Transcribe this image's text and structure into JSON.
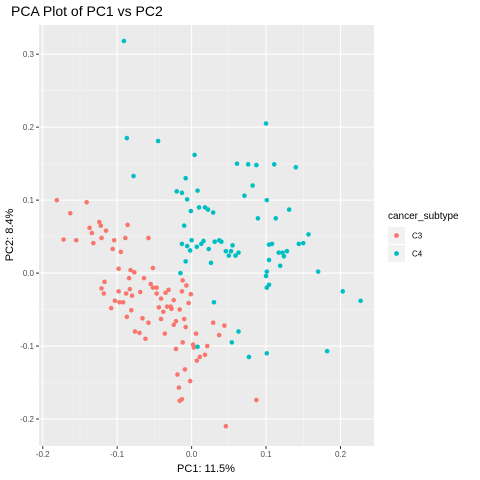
{
  "chart_data": {
    "type": "scatter",
    "title": "PCA Plot of PC1 vs PC2",
    "xlabel": "PC1: 11.5%",
    "ylabel": "PC2: 8.4%",
    "xlim": [
      -0.205,
      0.245
    ],
    "ylim": [
      -0.237,
      0.34
    ],
    "x_ticks": [
      -0.2,
      -0.1,
      0.0,
      0.1,
      0.2
    ],
    "x_tick_labels": [
      "-0.2",
      "-0.1",
      "0.0",
      "0.1",
      "0.2"
    ],
    "y_ticks": [
      -0.2,
      -0.1,
      0.0,
      0.1,
      0.2,
      0.3
    ],
    "y_tick_labels": [
      "-0.2",
      "-0.1",
      "0.0",
      "0.1",
      "0.2",
      "0.3"
    ],
    "grid": true,
    "legend": {
      "title": "cancer_subtype",
      "position": "right"
    },
    "series": [
      {
        "name": "C3",
        "color": "#F8766D",
        "points": [
          [
            -0.181,
            0.1
          ],
          [
            -0.172,
            0.046
          ],
          [
            -0.163,
            0.082
          ],
          [
            -0.155,
            0.045
          ],
          [
            -0.141,
            0.097
          ],
          [
            -0.137,
            0.062
          ],
          [
            -0.134,
            0.055
          ],
          [
            -0.132,
            0.041
          ],
          [
            -0.124,
            0.07
          ],
          [
            -0.122,
            0.065
          ],
          [
            -0.121,
            0.048
          ],
          [
            -0.115,
            0.058
          ],
          [
            -0.106,
            0.033
          ],
          [
            -0.104,
            0.045
          ],
          [
            -0.098,
            0.006
          ],
          [
            -0.095,
            0.029
          ],
          [
            -0.089,
            0.048
          ],
          [
            -0.086,
            0.066
          ],
          [
            -0.084,
            -0.007
          ],
          [
            -0.082,
            0.004
          ],
          [
            -0.077,
            0.001
          ],
          [
            -0.064,
            -0.007
          ],
          [
            -0.058,
            0.048
          ],
          [
            -0.052,
            0.007
          ],
          [
            -0.047,
            -0.02
          ],
          [
            -0.121,
            -0.021
          ],
          [
            -0.118,
            -0.028
          ],
          [
            -0.117,
            -0.012
          ],
          [
            -0.108,
            -0.048
          ],
          [
            -0.103,
            -0.038
          ],
          [
            -0.098,
            -0.025
          ],
          [
            -0.097,
            -0.04
          ],
          [
            -0.092,
            -0.04
          ],
          [
            -0.088,
            -0.028
          ],
          [
            -0.087,
            -0.06
          ],
          [
            -0.083,
            -0.022
          ],
          [
            -0.081,
            -0.051
          ],
          [
            -0.08,
            -0.031
          ],
          [
            -0.069,
            -0.026
          ],
          [
            -0.066,
            -0.062
          ],
          [
            -0.062,
            -0.09
          ],
          [
            -0.058,
            -0.068
          ],
          [
            -0.052,
            -0.02
          ],
          [
            -0.047,
            -0.028
          ],
          [
            -0.044,
            -0.047
          ],
          [
            -0.041,
            -0.063
          ],
          [
            -0.038,
            -0.053
          ],
          [
            -0.036,
            -0.083
          ],
          [
            -0.035,
            -0.027
          ],
          [
            -0.033,
            -0.046
          ],
          [
            -0.031,
            -0.023
          ],
          [
            -0.028,
            -0.046
          ],
          [
            -0.027,
            -0.049
          ],
          [
            -0.024,
            -0.037
          ],
          [
            -0.021,
            -0.066
          ],
          [
            -0.016,
            -0.05
          ],
          [
            -0.013,
            -0.025
          ],
          [
            -0.012,
            -0.01
          ],
          [
            -0.012,
            -0.095
          ],
          [
            -0.01,
            -0.063
          ],
          [
            -0.008,
            -0.074
          ],
          [
            -0.007,
            -0.017
          ],
          [
            -0.004,
            -0.041
          ],
          [
            -0.001,
            -0.029
          ],
          [
            0.002,
            -0.098
          ],
          [
            0.006,
            -0.083
          ],
          [
            -0.024,
            -0.071
          ],
          [
            -0.021,
            -0.104
          ],
          [
            -0.019,
            -0.139
          ],
          [
            -0.017,
            -0.157
          ],
          [
            -0.016,
            -0.175
          ],
          [
            -0.013,
            -0.173
          ],
          [
            -0.009,
            -0.132
          ],
          [
            -0.002,
            -0.148
          ],
          [
            0.003,
            -0.102
          ],
          [
            0.007,
            -0.12
          ],
          [
            0.011,
            -0.115
          ],
          [
            0.018,
            -0.112
          ],
          [
            0.021,
            -0.1
          ],
          [
            0.029,
            -0.068
          ],
          [
            0.037,
            -0.085
          ],
          [
            0.044,
            -0.072
          ],
          [
            0.046,
            -0.21
          ],
          [
            0.087,
            -0.174
          ],
          [
            -0.07,
            -0.082
          ],
          [
            -0.076,
            -0.08
          ],
          [
            -0.055,
            -0.015
          ],
          [
            -0.041,
            -0.035
          ]
        ]
      },
      {
        "name": "C4",
        "color": "#00BFC4",
        "points": [
          [
            -0.091,
            0.318
          ],
          [
            -0.087,
            0.185
          ],
          [
            -0.078,
            0.133
          ],
          [
            -0.045,
            0.181
          ],
          [
            -0.02,
            0.112
          ],
          [
            -0.013,
            0.11
          ],
          [
            -0.008,
            0.13
          ],
          [
            -0.006,
            0.101
          ],
          [
            -0.001,
            0.085
          ],
          [
            0.004,
            0.162
          ],
          [
            0.008,
            0.113
          ],
          [
            0.01,
            0.09
          ],
          [
            0.018,
            0.09
          ],
          [
            0.022,
            0.087
          ],
          [
            0.029,
            0.083
          ],
          [
            -0.013,
            0.04
          ],
          [
            -0.006,
            0.037
          ],
          [
            -0.002,
            0.031
          ],
          [
            -0.008,
            0.016
          ],
          [
            0.007,
            0.036
          ],
          [
            0.013,
            0.04
          ],
          [
            0.016,
            0.044
          ],
          [
            0.023,
            0.033
          ],
          [
            0.026,
            0.014
          ],
          [
            0.031,
            0.043
          ],
          [
            0.037,
            0.045
          ],
          [
            0.04,
            0.043
          ],
          [
            0.046,
            0.03
          ],
          [
            0.053,
            0.03
          ],
          [
            0.055,
            0.038
          ],
          [
            0.061,
            0.15
          ],
          [
            0.071,
            0.106
          ],
          [
            0.076,
            0.149
          ],
          [
            0.082,
            0.12
          ],
          [
            0.087,
            0.148
          ],
          [
            0.089,
            0.075
          ],
          [
            0.1,
            0.205
          ],
          [
            0.101,
            0.1
          ],
          [
            0.104,
            0.018
          ],
          [
            0.108,
            0.04
          ],
          [
            0.111,
            0.149
          ],
          [
            0.113,
            0.075
          ],
          [
            0.117,
            0.028
          ],
          [
            0.119,
            0.01
          ],
          [
            0.124,
            0.023
          ],
          [
            0.128,
            0.03
          ],
          [
            0.131,
            0.087
          ],
          [
            0.14,
            0.145
          ],
          [
            0.144,
            0.04
          ],
          [
            0.15,
            0.041
          ],
          [
            0.157,
            0.053
          ],
          [
            0.17,
            0.002
          ],
          [
            0.182,
            -0.107
          ],
          [
            0.203,
            -0.025
          ],
          [
            0.227,
            -0.038
          ],
          [
            0.063,
            0.028
          ],
          [
            0.059,
            0.024
          ],
          [
            0.05,
            0.024
          ],
          [
            0.104,
            0.039
          ],
          [
            0.122,
            0.028
          ],
          [
            0.101,
            -0.02
          ],
          [
            0.1,
            -0.004
          ],
          [
            0.101,
            0.002
          ],
          [
            0.104,
            -0.016
          ],
          [
            0.054,
            -0.095
          ],
          [
            0.063,
            -0.08
          ],
          [
            0.077,
            -0.115
          ],
          [
            0.101,
            -0.11
          ],
          [
            0.03,
            -0.04
          ],
          [
            0.008,
            -0.101
          ],
          [
            -0.01,
            0.065
          ],
          [
            -0.015,
            0.0
          ],
          [
            0.0,
            0.045
          ]
        ]
      }
    ]
  }
}
